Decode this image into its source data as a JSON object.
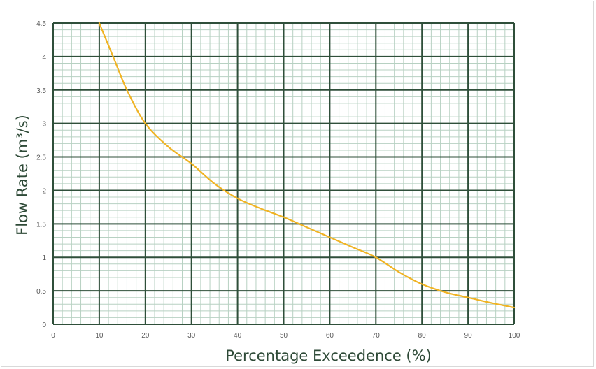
{
  "chart_data": {
    "type": "line",
    "title": "",
    "xlabel": "Percentage Exceedence (%)",
    "ylabel": "Flow Rate (m³/s)",
    "xlim": [
      0,
      100
    ],
    "ylim": [
      0,
      4.5
    ],
    "x_ticks": [
      "0",
      "10",
      "20",
      "30",
      "40",
      "50",
      "60",
      "70",
      "80",
      "90",
      "100"
    ],
    "y_ticks": [
      "0",
      "0.5",
      "1",
      "1.5",
      "2",
      "2.5",
      "3",
      "3.5",
      "4",
      "4.5"
    ],
    "grid": true,
    "series": [
      {
        "color": "#f0b323",
        "x": [
          10,
          13,
          16,
          20,
          25,
          30,
          35,
          40,
          45,
          50,
          55,
          60,
          65,
          70,
          75,
          80,
          85,
          90,
          95,
          100
        ],
        "y": [
          4.5,
          4.0,
          3.5,
          3.0,
          2.65,
          2.4,
          2.1,
          1.88,
          1.73,
          1.6,
          1.45,
          1.3,
          1.15,
          1.0,
          0.78,
          0.6,
          0.48,
          0.4,
          0.32,
          0.25
        ]
      }
    ],
    "colors": {
      "major_grid": "#2f4f3a",
      "minor_grid": "#b7d1c2",
      "axis_title": "#2e4a37",
      "tick_label": "#595959"
    }
  }
}
